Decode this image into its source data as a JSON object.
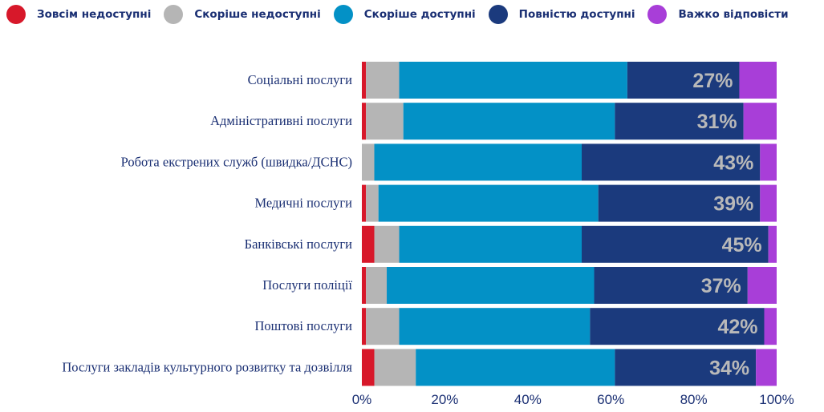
{
  "chart_data": {
    "type": "bar",
    "orientation": "horizontal",
    "stacked": true,
    "legend_position": "top",
    "grid": false,
    "xlim": [
      0,
      100
    ],
    "xticks": [
      "0%",
      "20%",
      "40%",
      "60%",
      "80%",
      "100%"
    ],
    "categories": [
      "Соціальні послуги",
      "Адміністративні послуги",
      "Робота екстрених служб (швидка/ДСНС)",
      "Медичні послуги",
      "Банківські послуги",
      "Послуги поліції",
      "Поштові послуги",
      "Послуги закладів культурного розвитку та дозвілля"
    ],
    "series": [
      {
        "name": "Зовсім недоступні",
        "color": "#d7182a",
        "values": [
          1,
          1,
          0,
          1,
          3,
          1,
          1,
          3
        ]
      },
      {
        "name": "Скоріше недоступні",
        "color": "#b5b5b5",
        "values": [
          8,
          9,
          3,
          3,
          6,
          5,
          8,
          10
        ]
      },
      {
        "name": "Скоріше доступні",
        "color": "#0391c6",
        "values": [
          55,
          51,
          50,
          53,
          44,
          50,
          46,
          48
        ]
      },
      {
        "name": "Повністю доступні",
        "color": "#1b3a7d",
        "values": [
          27,
          31,
          43,
          39,
          45,
          37,
          42,
          34
        ]
      },
      {
        "name": "Важко відповісти",
        "color": "#a83ed8",
        "values": [
          9,
          8,
          4,
          4,
          2,
          7,
          3,
          5
        ]
      }
    ],
    "data_labels": [
      "27%",
      "31%",
      "43%",
      "39%",
      "45%",
      "37%",
      "42%",
      "34%"
    ],
    "label_color": "#b9b9b9"
  }
}
